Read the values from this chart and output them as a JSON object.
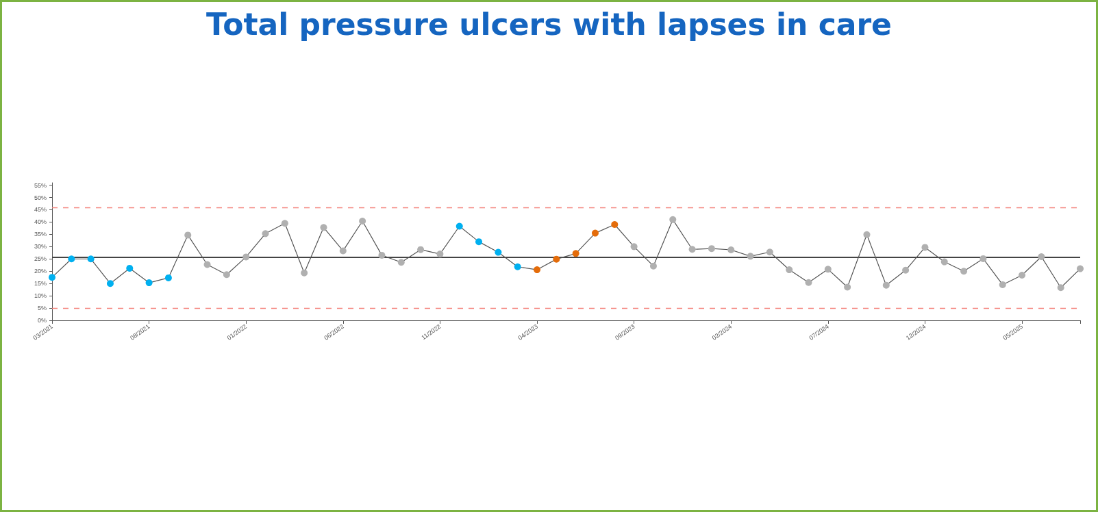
{
  "chart_data": {
    "type": "line",
    "title": "Total pressure ulcers with lapses in care",
    "categories": [
      "03/2021",
      null,
      null,
      null,
      null,
      "08/2021",
      null,
      null,
      null,
      null,
      "01/2022",
      null,
      null,
      null,
      null,
      "06/2022",
      null,
      null,
      null,
      null,
      "11/2022",
      null,
      null,
      null,
      null,
      "04/2023",
      null,
      null,
      null,
      null,
      "09/2023",
      null,
      null,
      null,
      null,
      "02/2024",
      null,
      null,
      null,
      null,
      "07/2024",
      null,
      null,
      null,
      null,
      "12/2024",
      null,
      null,
      null,
      null,
      "05/2025",
      null,
      null,
      null
    ],
    "series": [
      {
        "color": "#555555",
        "marker": "circle",
        "values": [
          17.5,
          25,
          25,
          15,
          21.2,
          15.3,
          17.3,
          34.7,
          22.7,
          18.6,
          25.8,
          35.3,
          39.5,
          19.3,
          37.8,
          28.3,
          40.4,
          26.5,
          23.6,
          28.8,
          27,
          38.3,
          32,
          27.7,
          21.8,
          20.6,
          24.9,
          27.2,
          35.5,
          39,
          30,
          22.1,
          41,
          28.9,
          29.2,
          28.7,
          26.1,
          27.8,
          20.6,
          15.4,
          20.8,
          13.5,
          34.9,
          14.3,
          20.4,
          29.7,
          23.8,
          20,
          25.1,
          14.5,
          18.4,
          25.9,
          13.3,
          21
        ],
        "colors": [
          "#00b0f0",
          "#00b0f0",
          "#00b0f0",
          "#00b0f0",
          "#00b0f0",
          "#00b0f0",
          "#00b0f0",
          "#b0b0b0",
          "#b0b0b0",
          "#b0b0b0",
          "#b0b0b0",
          "#b0b0b0",
          "#b0b0b0",
          "#b0b0b0",
          "#b0b0b0",
          "#b0b0b0",
          "#b0b0b0",
          "#b0b0b0",
          "#b0b0b0",
          "#b0b0b0",
          "#b0b0b0",
          "#00b0f0",
          "#00b0f0",
          "#00b0f0",
          "#00b0f0",
          "#e46c0a",
          "#e46c0a",
          "#e46c0a",
          "#e46c0a",
          "#e46c0a",
          "#b0b0b0",
          "#b0b0b0",
          "#b0b0b0",
          "#b0b0b0",
          "#b0b0b0",
          "#b0b0b0",
          "#b0b0b0",
          "#b0b0b0",
          "#b0b0b0",
          "#b0b0b0",
          "#b0b0b0",
          "#b0b0b0",
          "#b0b0b0",
          "#b0b0b0",
          "#b0b0b0",
          "#b0b0b0",
          "#b0b0b0",
          "#b0b0b0",
          "#b0b0b0",
          "#b0b0b0",
          "#b0b0b0",
          "#b0b0b0",
          "#b0b0b0",
          "#b0b0b0"
        ]
      }
    ],
    "ylim": [
      0,
      56
    ],
    "yticks": [
      {
        "value": 0,
        "label": "0%"
      },
      {
        "value": 5,
        "label": "5%"
      },
      {
        "value": 10,
        "label": "10%"
      },
      {
        "value": 15,
        "label": "15%"
      },
      {
        "value": 20,
        "label": "20%"
      },
      {
        "value": 25,
        "label": "25%"
      },
      {
        "value": 30,
        "label": "30%"
      },
      {
        "value": 35,
        "label": "35%"
      },
      {
        "value": 40,
        "label": "40%"
      },
      {
        "value": 45,
        "label": "45%"
      },
      {
        "value": 50,
        "label": "50%"
      },
      {
        "value": 55,
        "label": "55%"
      }
    ],
    "ref_lines": [
      {
        "axis": "y",
        "value": 25.6,
        "label": null,
        "color": "#444444",
        "line_style": "solid"
      },
      {
        "axis": "y",
        "value": 45.9,
        "label": null,
        "color": "#f4837d",
        "line_style": "dashed"
      },
      {
        "axis": "y",
        "value": 4.9,
        "label": null,
        "color": "#f4837d",
        "line_style": "dashed"
      }
    ],
    "grid": false
  }
}
